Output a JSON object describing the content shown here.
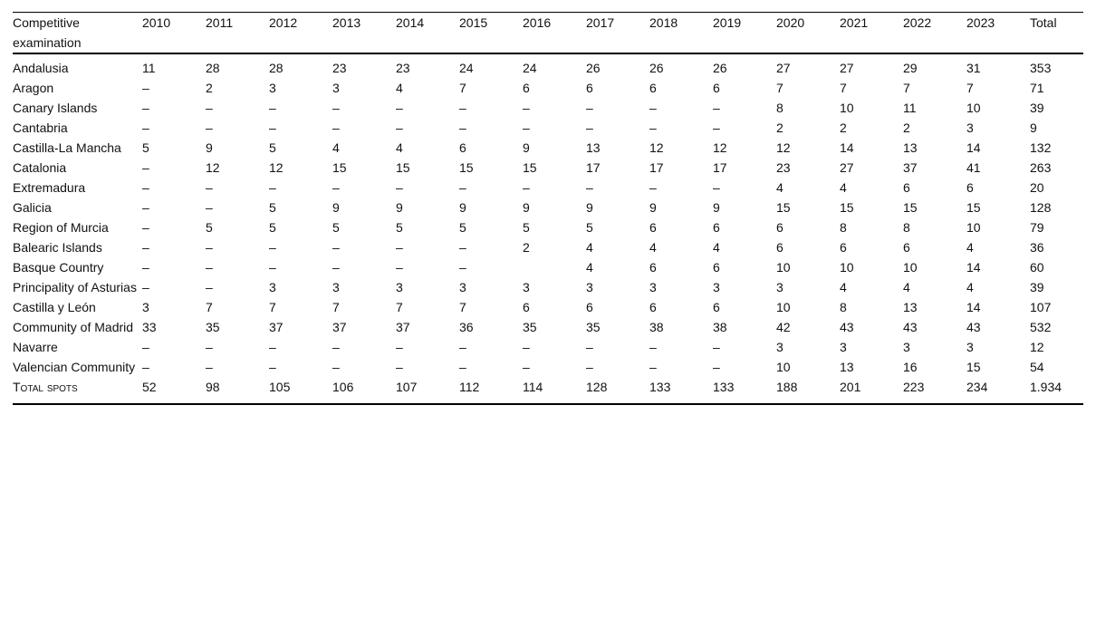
{
  "table": {
    "header": {
      "region_column": "Competitive examination",
      "years": [
        "2010",
        "2011",
        "2012",
        "2013",
        "2014",
        "2015",
        "2016",
        "2017",
        "2018",
        "2019",
        "2020",
        "2021",
        "2022",
        "2023"
      ],
      "total_column": "Total"
    },
    "dash": "–",
    "rows": [
      {
        "name": "Andalusia",
        "values": [
          "11",
          "28",
          "28",
          "23",
          "23",
          "24",
          "24",
          "26",
          "26",
          "26",
          "27",
          "27",
          "29",
          "31",
          "353"
        ]
      },
      {
        "name": "Aragon",
        "values": [
          "–",
          "2",
          "3",
          "3",
          "4",
          "7",
          "6",
          "6",
          "6",
          "6",
          "7",
          "7",
          "7",
          "7",
          "71"
        ]
      },
      {
        "name": "Canary Islands",
        "values": [
          "–",
          "–",
          "–",
          "–",
          "–",
          "–",
          "–",
          "–",
          "–",
          "–",
          "8",
          "10",
          "11",
          "10",
          "39"
        ]
      },
      {
        "name": "Cantabria",
        "values": [
          "–",
          "–",
          "–",
          "–",
          "–",
          "–",
          "–",
          "–",
          "–",
          "–",
          "2",
          "2",
          "2",
          "3",
          "9"
        ]
      },
      {
        "name": "Castilla-La Mancha",
        "values": [
          "5",
          "9",
          "5",
          "4",
          "4",
          "6",
          "9",
          "13",
          "12",
          "12",
          "12",
          "14",
          "13",
          "14",
          "132"
        ]
      },
      {
        "name": "Catalonia",
        "values": [
          "–",
          "12",
          "12",
          "15",
          "15",
          "15",
          "15",
          "17",
          "17",
          "17",
          "23",
          "27",
          "37",
          "41",
          "263"
        ]
      },
      {
        "name": "Extremadura",
        "values": [
          "–",
          "–",
          "–",
          "–",
          "–",
          "–",
          "–",
          "–",
          "–",
          "–",
          "4",
          "4",
          "6",
          "6",
          "20"
        ]
      },
      {
        "name": "Galicia",
        "values": [
          "–",
          "–",
          "5",
          "9",
          "9",
          "9",
          "9",
          "9",
          "9",
          "9",
          "15",
          "15",
          "15",
          "15",
          "128"
        ]
      },
      {
        "name": "Region of Murcia",
        "values": [
          "–",
          "5",
          "5",
          "5",
          "5",
          "5",
          "5",
          "5",
          "6",
          "6",
          "6",
          "8",
          "8",
          "10",
          "79"
        ]
      },
      {
        "name": "Balearic Islands",
        "values": [
          "–",
          "–",
          "–",
          "–",
          "–",
          "–",
          "2",
          "4",
          "4",
          "4",
          "6",
          "6",
          "6",
          "4",
          "36"
        ]
      },
      {
        "name": "Basque Country",
        "values": [
          "–",
          "–",
          "–",
          "–",
          "–",
          "–",
          "",
          "4",
          "6",
          "6",
          "10",
          "10",
          "10",
          "14",
          "60"
        ]
      },
      {
        "name": "Principality of Asturias",
        "values": [
          "–",
          "–",
          "3",
          "3",
          "3",
          "3",
          "3",
          "3",
          "3",
          "3",
          "3",
          "4",
          "4",
          "4",
          "39"
        ]
      },
      {
        "name": "Castilla y León",
        "values": [
          "3",
          "7",
          "7",
          "7",
          "7",
          "7",
          "6",
          "6",
          "6",
          "6",
          "10",
          "8",
          "13",
          "14",
          "107"
        ]
      },
      {
        "name": "Community of Madrid",
        "values": [
          "33",
          "35",
          "37",
          "37",
          "37",
          "36",
          "35",
          "35",
          "38",
          "38",
          "42",
          "43",
          "43",
          "43",
          "532"
        ]
      },
      {
        "name": "Navarre",
        "values": [
          "–",
          "–",
          "–",
          "–",
          "–",
          "–",
          "–",
          "–",
          "–",
          "–",
          "3",
          "3",
          "3",
          "3",
          "12"
        ]
      },
      {
        "name": "Valencian Community",
        "values": [
          "–",
          "–",
          "–",
          "–",
          "–",
          "–",
          "–",
          "–",
          "–",
          "–",
          "10",
          "13",
          "16",
          "15",
          "54"
        ]
      },
      {
        "name": "Total spots",
        "is_totals": true,
        "values": [
          "52",
          "98",
          "105",
          "106",
          "107",
          "112",
          "114",
          "128",
          "133",
          "133",
          "188",
          "201",
          "223",
          "234",
          "1.934"
        ]
      }
    ]
  }
}
